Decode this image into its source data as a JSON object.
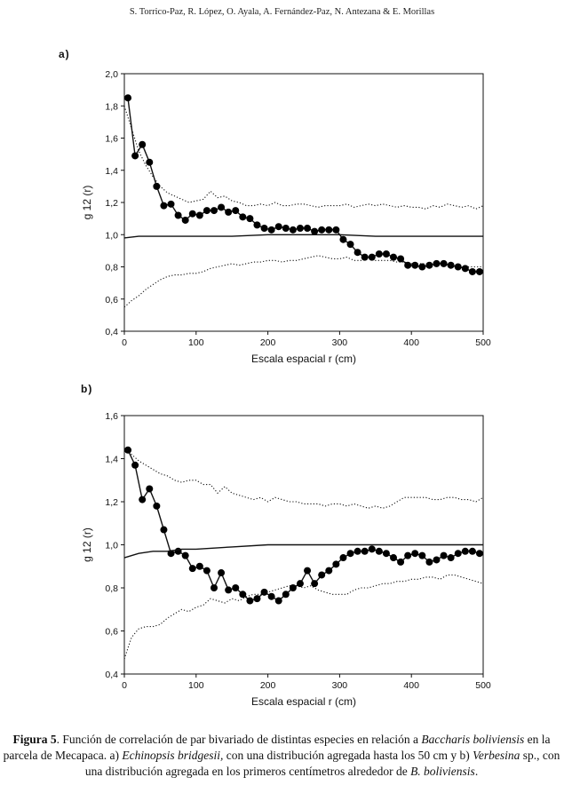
{
  "header": {
    "authors": "S. Torrico-Paz, R. López, O. Ayala, A. Fernández-Paz, N. Antezana & E. Morillas"
  },
  "caption": {
    "label": "Figura 5",
    "p1": ". Función de correlación de par bivariado de distintas especies en relación a ",
    "it1": "Baccharis boliviensis",
    "p2": " en la parcela de Mecapaca. a) ",
    "it2": "Echinopsis bridgesii,",
    "p3": " con una distribución agregada hasta los 50 cm y b) ",
    "it3": "Verbesina",
    "p4": " sp., con una distribución agregada en los primeros centímetros alrededor de ",
    "it4": "B. boliviensis",
    "p5": "."
  },
  "chart_data": [
    {
      "type": "line",
      "panel_label": "a)",
      "xlabel": "Escala espacial r (cm)",
      "ylabel": "g 12 (r)",
      "xlim": [
        0,
        500
      ],
      "ylim": [
        0.4,
        2.0
      ],
      "xticks": [
        0,
        100,
        200,
        300,
        400,
        500
      ],
      "yticks": [
        "0,4",
        "0,6",
        "0,8",
        "1,0",
        "1,2",
        "1,4",
        "1,6",
        "1,8",
        "2,0"
      ],
      "grid": false,
      "series": [
        {
          "style": "solid-dots",
          "x": [
            5,
            15,
            25,
            35,
            45,
            55,
            65,
            75,
            85,
            95,
            105,
            115,
            125,
            135,
            145,
            155,
            165,
            175,
            185,
            195,
            205,
            215,
            225,
            235,
            245,
            255,
            265,
            275,
            285,
            295,
            305,
            315,
            325,
            335,
            345,
            355,
            365,
            375,
            385,
            395,
            405,
            415,
            425,
            435,
            445,
            455,
            465,
            475,
            485,
            495
          ],
          "y": [
            1.85,
            1.49,
            1.56,
            1.45,
            1.3,
            1.18,
            1.19,
            1.12,
            1.09,
            1.13,
            1.12,
            1.15,
            1.15,
            1.17,
            1.14,
            1.15,
            1.11,
            1.1,
            1.06,
            1.04,
            1.03,
            1.05,
            1.04,
            1.03,
            1.04,
            1.04,
            1.02,
            1.03,
            1.03,
            1.03,
            0.97,
            0.94,
            0.89,
            0.86,
            0.86,
            0.88,
            0.88,
            0.86,
            0.85,
            0.81,
            0.81,
            0.8,
            0.81,
            0.82,
            0.82,
            0.81,
            0.8,
            0.79,
            0.77,
            0.77
          ]
        },
        {
          "style": "solid",
          "x": [
            0,
            20,
            50,
            100,
            150,
            200,
            250,
            300,
            350,
            400,
            450,
            500
          ],
          "y": [
            0.98,
            0.99,
            0.99,
            0.99,
            0.99,
            1.0,
            1.0,
            1.0,
            0.99,
            0.99,
            0.99,
            0.99
          ]
        },
        {
          "style": "dotted",
          "x": [
            0,
            10,
            20,
            30,
            40,
            50,
            60,
            70,
            80,
            90,
            100,
            110,
            120,
            130,
            140,
            150,
            160,
            170,
            180,
            190,
            200,
            210,
            220,
            230,
            240,
            250,
            260,
            270,
            280,
            290,
            300,
            310,
            320,
            330,
            340,
            350,
            360,
            370,
            380,
            390,
            400,
            410,
            420,
            430,
            440,
            450,
            460,
            470,
            480,
            490,
            500
          ],
          "y": [
            1.8,
            1.66,
            1.52,
            1.43,
            1.36,
            1.3,
            1.26,
            1.24,
            1.22,
            1.2,
            1.21,
            1.22,
            1.27,
            1.23,
            1.24,
            1.21,
            1.2,
            1.18,
            1.18,
            1.19,
            1.18,
            1.2,
            1.18,
            1.18,
            1.19,
            1.19,
            1.18,
            1.17,
            1.18,
            1.18,
            1.18,
            1.19,
            1.17,
            1.18,
            1.19,
            1.18,
            1.19,
            1.18,
            1.17,
            1.18,
            1.17,
            1.17,
            1.16,
            1.18,
            1.17,
            1.19,
            1.18,
            1.17,
            1.18,
            1.16,
            1.18
          ]
        },
        {
          "style": "dotted",
          "x": [
            0,
            10,
            20,
            30,
            40,
            50,
            60,
            70,
            80,
            90,
            100,
            110,
            120,
            130,
            140,
            150,
            160,
            170,
            180,
            190,
            200,
            210,
            220,
            230,
            240,
            250,
            260,
            270,
            280,
            290,
            300,
            310,
            320,
            330,
            340,
            350,
            360,
            370,
            380,
            390,
            400,
            410,
            420,
            430,
            440,
            450,
            460,
            470,
            480,
            490,
            500
          ],
          "y": [
            0.55,
            0.59,
            0.62,
            0.66,
            0.69,
            0.72,
            0.74,
            0.75,
            0.75,
            0.76,
            0.76,
            0.77,
            0.79,
            0.8,
            0.81,
            0.82,
            0.81,
            0.82,
            0.83,
            0.83,
            0.84,
            0.84,
            0.83,
            0.84,
            0.84,
            0.85,
            0.86,
            0.87,
            0.86,
            0.85,
            0.85,
            0.86,
            0.84,
            0.84,
            0.85,
            0.84,
            0.84,
            0.84,
            0.83,
            0.83,
            0.82,
            0.82,
            0.82,
            0.81,
            0.81,
            0.81,
            0.81,
            0.8,
            0.8,
            0.8,
            0.8
          ]
        }
      ]
    },
    {
      "type": "line",
      "panel_label": "b)",
      "xlabel": "Escala espacial r (cm)",
      "ylabel": "g 12 (r)",
      "xlim": [
        0,
        500
      ],
      "ylim": [
        0.4,
        1.6
      ],
      "xticks": [
        0,
        100,
        200,
        300,
        400,
        500
      ],
      "yticks": [
        "0,4",
        "0,6",
        "0,8",
        "1,0",
        "1,2",
        "1,4",
        "1,6"
      ],
      "grid": false,
      "series": [
        {
          "style": "solid-dots",
          "x": [
            5,
            15,
            25,
            35,
            45,
            55,
            65,
            75,
            85,
            95,
            105,
            115,
            125,
            135,
            145,
            155,
            165,
            175,
            185,
            195,
            205,
            215,
            225,
            235,
            245,
            255,
            265,
            275,
            285,
            295,
            305,
            315,
            325,
            335,
            345,
            355,
            365,
            375,
            385,
            395,
            405,
            415,
            425,
            435,
            445,
            455,
            465,
            475,
            485,
            495
          ],
          "y": [
            1.44,
            1.37,
            1.21,
            1.26,
            1.18,
            1.07,
            0.96,
            0.97,
            0.95,
            0.89,
            0.9,
            0.88,
            0.8,
            0.87,
            0.79,
            0.8,
            0.77,
            0.74,
            0.75,
            0.78,
            0.76,
            0.74,
            0.77,
            0.8,
            0.82,
            0.88,
            0.82,
            0.86,
            0.88,
            0.91,
            0.94,
            0.96,
            0.97,
            0.97,
            0.98,
            0.97,
            0.96,
            0.94,
            0.92,
            0.95,
            0.96,
            0.95,
            0.92,
            0.93,
            0.95,
            0.94,
            0.96,
            0.97,
            0.97,
            0.96
          ]
        },
        {
          "style": "solid",
          "x": [
            0,
            20,
            40,
            60,
            80,
            100,
            150,
            200,
            250,
            300,
            350,
            400,
            450,
            500
          ],
          "y": [
            0.94,
            0.96,
            0.97,
            0.97,
            0.98,
            0.98,
            0.99,
            1.0,
            1.0,
            1.0,
            1.0,
            1.0,
            1.0,
            1.0
          ]
        },
        {
          "style": "dotted",
          "x": [
            0,
            10,
            20,
            30,
            40,
            50,
            60,
            70,
            80,
            90,
            100,
            110,
            120,
            130,
            140,
            150,
            160,
            170,
            180,
            190,
            200,
            210,
            220,
            230,
            240,
            250,
            260,
            270,
            280,
            290,
            300,
            310,
            320,
            330,
            340,
            350,
            360,
            370,
            380,
            390,
            400,
            410,
            420,
            430,
            440,
            450,
            460,
            470,
            480,
            490,
            500
          ],
          "y": [
            1.45,
            1.42,
            1.39,
            1.37,
            1.35,
            1.33,
            1.32,
            1.3,
            1.29,
            1.3,
            1.3,
            1.28,
            1.28,
            1.24,
            1.27,
            1.24,
            1.23,
            1.22,
            1.21,
            1.22,
            1.2,
            1.22,
            1.21,
            1.2,
            1.2,
            1.19,
            1.19,
            1.19,
            1.18,
            1.19,
            1.19,
            1.18,
            1.19,
            1.18,
            1.17,
            1.18,
            1.17,
            1.18,
            1.2,
            1.22,
            1.22,
            1.22,
            1.22,
            1.21,
            1.21,
            1.22,
            1.22,
            1.21,
            1.21,
            1.2,
            1.22
          ]
        },
        {
          "style": "dotted",
          "x": [
            0,
            5,
            10,
            15,
            20,
            30,
            40,
            50,
            60,
            70,
            80,
            90,
            100,
            110,
            120,
            130,
            140,
            150,
            160,
            170,
            180,
            190,
            200,
            210,
            220,
            230,
            240,
            250,
            260,
            270,
            280,
            290,
            300,
            310,
            320,
            330,
            340,
            350,
            360,
            370,
            380,
            390,
            400,
            410,
            420,
            430,
            440,
            450,
            460,
            470,
            480,
            490,
            500
          ],
          "y": [
            0.47,
            0.52,
            0.57,
            0.59,
            0.61,
            0.62,
            0.62,
            0.63,
            0.66,
            0.68,
            0.7,
            0.69,
            0.71,
            0.72,
            0.75,
            0.74,
            0.73,
            0.75,
            0.74,
            0.76,
            0.77,
            0.77,
            0.78,
            0.79,
            0.8,
            0.81,
            0.81,
            0.8,
            0.81,
            0.79,
            0.78,
            0.77,
            0.77,
            0.77,
            0.79,
            0.8,
            0.8,
            0.81,
            0.82,
            0.82,
            0.83,
            0.83,
            0.84,
            0.84,
            0.85,
            0.85,
            0.84,
            0.86,
            0.86,
            0.85,
            0.84,
            0.83,
            0.82
          ]
        }
      ]
    }
  ]
}
